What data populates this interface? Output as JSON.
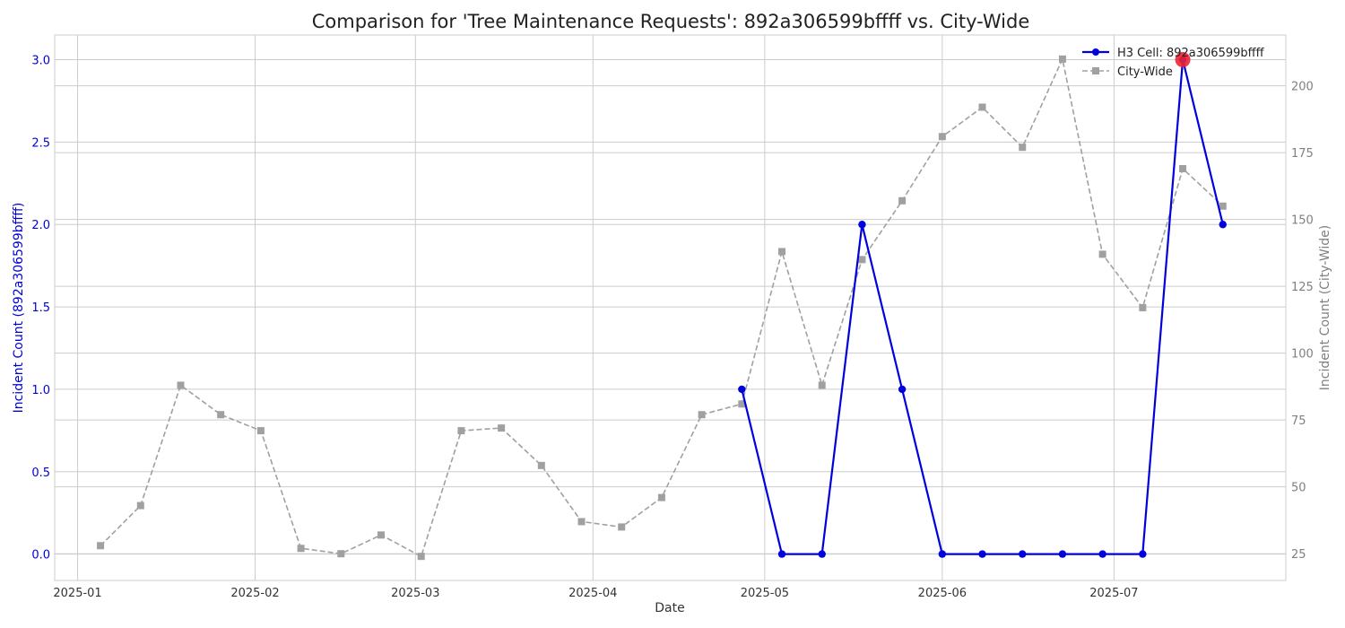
{
  "chart_data": {
    "type": "line",
    "title": "Comparison for 'Tree Maintenance Requests': 892a306599bffff vs. City-Wide",
    "xlabel": "Date",
    "ylabel_left": "Incident Count (892a306599bffff)",
    "ylabel_right": "Incident Count (City-Wide)",
    "x_ticks": [
      "2025-01-01",
      "2025-02-01",
      "2025-03-01",
      "2025-04-01",
      "2025-05-01",
      "2025-06-01",
      "2025-07-01"
    ],
    "x_tick_labels": [
      "2025-01",
      "2025-02",
      "2025-03",
      "2025-04",
      "2025-05",
      "2025-06",
      "2025-07"
    ],
    "xlim": [
      "2024-12-28",
      "2025-07-31"
    ],
    "ylim_left": [
      -0.16,
      3.15
    ],
    "ylim_right": [
      15,
      219
    ],
    "y_ticks_left": [
      0.0,
      0.5,
      1.0,
      1.5,
      2.0,
      2.5,
      3.0
    ],
    "y_tick_labels_left": [
      "0.0",
      "0.5",
      "1.0",
      "1.5",
      "2.0",
      "2.5",
      "3.0"
    ],
    "y_ticks_right": [
      25,
      50,
      75,
      100,
      125,
      150,
      175,
      200
    ],
    "y_tick_labels_right": [
      "25",
      "50",
      "75",
      "100",
      "125",
      "150",
      "175",
      "200"
    ],
    "grid": true,
    "legend_position": "top-right",
    "series": [
      {
        "name": "H3 Cell: 892a306599bffff",
        "axis": "left",
        "color": "#0000dd",
        "style": "solid",
        "marker": "circle",
        "x": [
          "2025-04-27",
          "2025-05-04",
          "2025-05-11",
          "2025-05-18",
          "2025-05-25",
          "2025-06-01",
          "2025-06-08",
          "2025-06-15",
          "2025-06-22",
          "2025-06-29",
          "2025-07-06",
          "2025-07-13",
          "2025-07-20"
        ],
        "values": [
          1,
          0,
          0,
          2,
          1,
          0,
          0,
          0,
          0,
          0,
          0,
          3,
          2
        ]
      },
      {
        "name": "City-Wide",
        "axis": "right",
        "color": "#a0a0a0",
        "style": "dashed",
        "marker": "square",
        "x": [
          "2025-01-05",
          "2025-01-12",
          "2025-01-19",
          "2025-01-26",
          "2025-02-02",
          "2025-02-09",
          "2025-02-16",
          "2025-02-23",
          "2025-03-02",
          "2025-03-09",
          "2025-03-16",
          "2025-03-23",
          "2025-03-30",
          "2025-04-06",
          "2025-04-13",
          "2025-04-20",
          "2025-04-27",
          "2025-05-04",
          "2025-05-11",
          "2025-05-18",
          "2025-05-25",
          "2025-06-01",
          "2025-06-08",
          "2025-06-15",
          "2025-06-22",
          "2025-06-29",
          "2025-07-06",
          "2025-07-13",
          "2025-07-20"
        ],
        "values": [
          28,
          43,
          88,
          77,
          71,
          27,
          25,
          32,
          24,
          71,
          72,
          58,
          37,
          35,
          46,
          77,
          81,
          138,
          88,
          135,
          157,
          181,
          192,
          177,
          210,
          137,
          117,
          169,
          155
        ]
      }
    ],
    "highlight": {
      "x": "2025-07-13",
      "value": 3,
      "axis": "left",
      "color": "#ee2233"
    },
    "colors": {
      "left_axis": "#0000dd",
      "right_axis": "#808080",
      "grid": "#cccccc",
      "frame": "#cccccc"
    }
  }
}
